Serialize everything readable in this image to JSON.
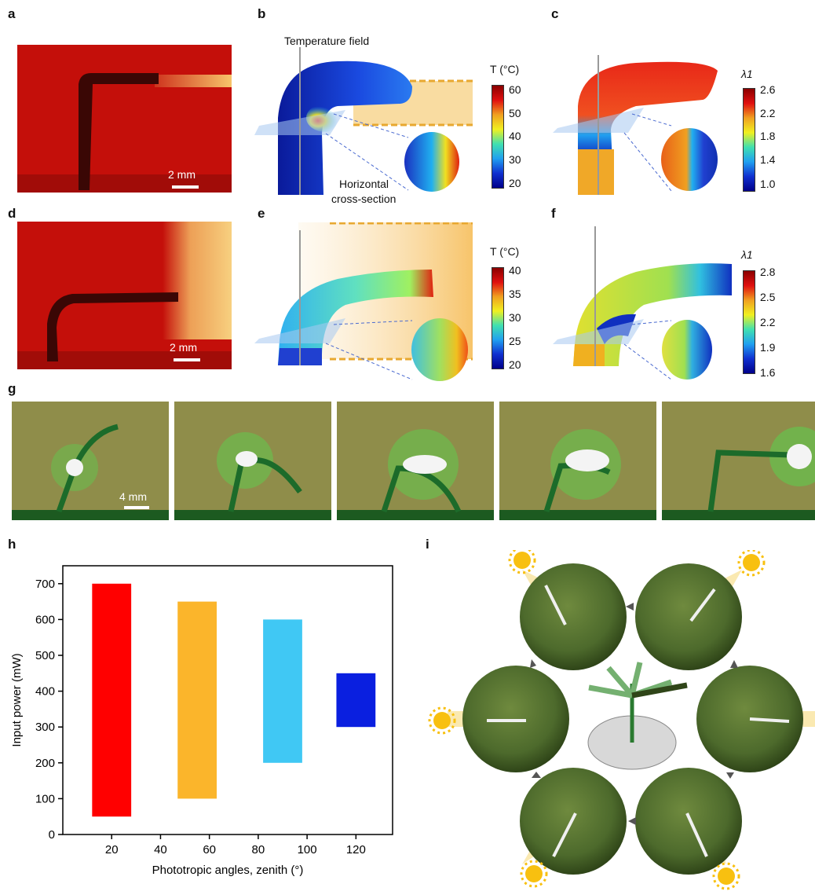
{
  "panels": {
    "a": "a",
    "b": "b",
    "c": "c",
    "d": "d",
    "e": "e",
    "f": "f",
    "g": "g",
    "h": "h",
    "i": "i"
  },
  "annotations": {
    "temperature_field": "Temperature field",
    "horizontal": "Horizontal",
    "cross_section": "cross-section"
  },
  "scale_bars": {
    "a": "2 mm",
    "d": "2 mm",
    "g": "4 mm"
  },
  "colorbars": {
    "b": {
      "label": "T (°C)",
      "ticks": [
        "60",
        "50",
        "40",
        "30",
        "20"
      ]
    },
    "c": {
      "label": "λ1",
      "ticks": [
        "2.6",
        "2.2",
        "1.8",
        "1.4",
        "1.0"
      ]
    },
    "e": {
      "label": "T (°C)",
      "ticks": [
        "40",
        "35",
        "30",
        "25",
        "20"
      ]
    },
    "f": {
      "label": "λ1",
      "ticks": [
        "2.8",
        "2.5",
        "2.2",
        "1.9",
        "1.6"
      ]
    }
  },
  "colors": {
    "red_bg": "#c40f0a",
    "light_beam": "#f7c46a",
    "green_bg": "#8f8d4a",
    "plant_green": "#1c6b2a",
    "bar1": "#ff0000",
    "bar2": "#fbb52b",
    "bar3": "#40c8f4",
    "bar4": "#0a1fe0"
  },
  "icons": [
    "sun-icon",
    "arrow-icon"
  ],
  "chart_data": {
    "type": "bar",
    "xlabel": "Phototropic angles, zenith (°)",
    "ylabel": "Input power (mW)",
    "xlim": [
      0,
      135
    ],
    "ylim": [
      0,
      750
    ],
    "xticks": [
      20,
      40,
      60,
      80,
      100,
      120
    ],
    "yticks": [
      0,
      100,
      200,
      300,
      400,
      500,
      600,
      700
    ],
    "series": [
      {
        "x_from": 12,
        "x_to": 28,
        "low": 50,
        "high": 700,
        "color": "#ff0000"
      },
      {
        "x_from": 47,
        "x_to": 63,
        "low": 100,
        "high": 650,
        "color": "#fbb52b"
      },
      {
        "x_from": 82,
        "x_to": 98,
        "low": 200,
        "high": 600,
        "color": "#40c8f4"
      },
      {
        "x_from": 112,
        "x_to": 128,
        "low": 300,
        "high": 450,
        "color": "#0a1fe0"
      }
    ]
  }
}
